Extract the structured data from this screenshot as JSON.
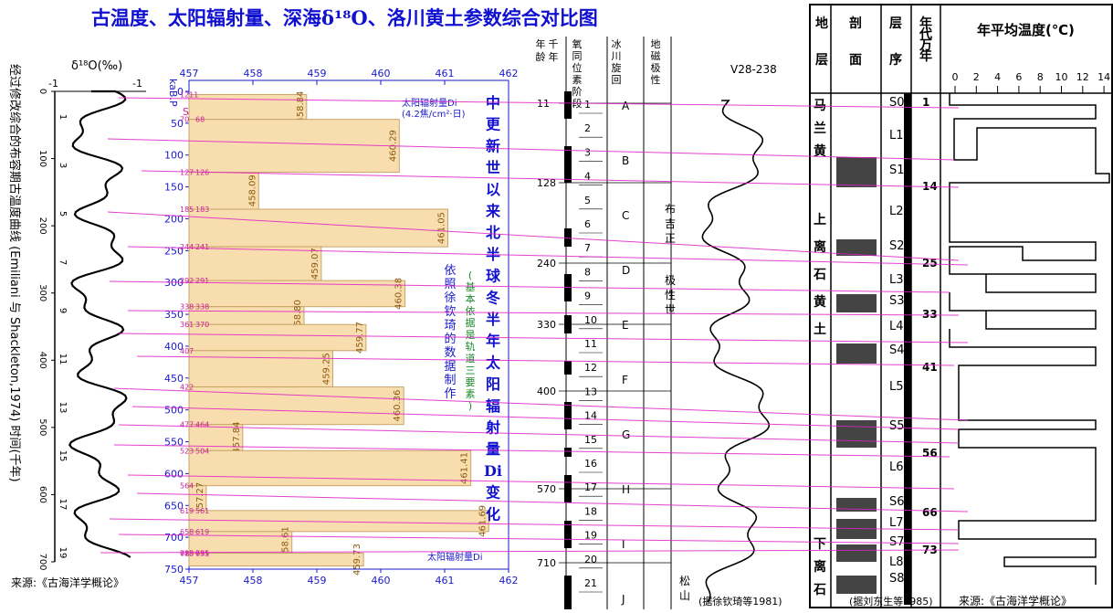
{
  "chart_data": {
    "type": "bar",
    "title": "古温度、太阳辐射量、深海δ¹⁸O、洛川黄土参数综合对比图",
    "subtitle": "中更新世以来北半球冬半年太阳辐射量Di变化",
    "xlabel": "",
    "ylabel": "kaB.P",
    "xlim": [
      457,
      462
    ],
    "x_ticks": [
      457,
      458,
      459,
      460,
      461,
      462
    ],
    "ylim": [
      0,
      750
    ],
    "y_ticks": [
      0,
      50,
      100,
      150,
      200,
      250,
      300,
      350,
      400,
      450,
      500,
      550,
      600,
      650,
      700,
      750
    ],
    "sd_label": "SD",
    "series_label": "太阳辐射量Di",
    "series_unit": "(4.2焦/cm²·日)",
    "bottom_series_label": "太阳辐射量Di",
    "note_1": "依照徐钦琦的数据制作",
    "note_2": "(基本依据是轨道三要素)",
    "bars": [
      {
        "start": 5,
        "end": 44,
        "value": 458.84,
        "label": "458.84"
      },
      {
        "start": 44,
        "end": 127,
        "value": 460.29,
        "label": "460.29"
      },
      {
        "start": 127,
        "end": 185,
        "value": 458.09,
        "label": "458.09"
      },
      {
        "start": 185,
        "end": 244,
        "value": 461.05,
        "label": "461.05"
      },
      {
        "start": 244,
        "end": 297,
        "value": 459.07,
        "label": "459.07"
      },
      {
        "start": 297,
        "end": 338,
        "value": 460.38,
        "label": "460.38"
      },
      {
        "start": 338,
        "end": 366,
        "value": 458.8,
        "label": "458.80"
      },
      {
        "start": 366,
        "end": 407,
        "value": 459.77,
        "label": "459.77"
      },
      {
        "start": 407,
        "end": 464,
        "value": 459.25,
        "label": "459.25"
      },
      {
        "start": 464,
        "end": 523,
        "value": 460.36,
        "label": "460.36"
      },
      {
        "start": 523,
        "end": 564,
        "value": 457.84,
        "label": "457.84"
      },
      {
        "start": 564,
        "end": 619,
        "value": 461.41,
        "label": "461.41"
      },
      {
        "start": 619,
        "end": 658,
        "value": 457.27,
        "label": "457.27"
      },
      {
        "start": 658,
        "end": 691,
        "value": 461.69,
        "label": "461.69"
      },
      {
        "start": 691,
        "end": 725,
        "value": 458.61,
        "label": "458.61"
      },
      {
        "start": 725,
        "end": 745,
        "value": 459.73,
        "label": "459.73"
      }
    ],
    "age_labels_left": [
      "1211",
      "70",
      "127",
      "185",
      "244",
      "292",
      "338",
      "361",
      "407",
      "422",
      "477",
      "523",
      "564",
      "619",
      "658",
      "688",
      "713",
      "725"
    ],
    "age_labels_right": [
      "",
      "68",
      "126",
      "183",
      "241",
      "291",
      "338",
      "370",
      "",
      "",
      "464",
      "504",
      "",
      "561",
      "619",
      "655",
      "691",
      "735"
    ],
    "d18o_panel": {
      "axis_label": "δ¹⁸O(‰)",
      "scale_left": "-1",
      "scale_right": "-1",
      "side_label": "经过修改综合的布容期古温度曲线 (Emiliani 与 Shackleton,1974)  时间(千年)",
      "stage_numbers": [
        "1",
        "3",
        "5",
        "7",
        "9",
        "11",
        "13",
        "15",
        "17",
        "19"
      ],
      "depth_ticks": [
        "0",
        "100",
        "200",
        "300",
        "400",
        "500",
        "600",
        "700"
      ]
    },
    "core_panel": {
      "headers": [
        "年龄(千年)",
        "氧同位素阶段",
        "冰川旋回",
        "地磁极性",
        "V28-238"
      ],
      "age_marks": [
        "11",
        "128",
        "240",
        "330",
        "400",
        "570",
        "710"
      ],
      "stages": [
        "1",
        "2",
        "3",
        "4",
        "5",
        "6",
        "7",
        "8",
        "9",
        "10",
        "11",
        "12",
        "13",
        "14",
        "15",
        "16",
        "17",
        "18",
        "19",
        "20",
        "21"
      ],
      "glacial_cycles": [
        "A",
        "B",
        "C",
        "D",
        "E",
        "F",
        "G",
        "H",
        "I",
        "J"
      ],
      "polarity_upper": "布吉正极性世",
      "polarity_lower": "松山",
      "source": "(据徐钦琦等1981)"
    },
    "loess_panel": {
      "headers": [
        "地层",
        "剖面",
        "层序",
        "年代万年",
        "年平均温度(℃)"
      ],
      "temp_ticks": [
        "0",
        "2",
        "4",
        "6",
        "8",
        "10",
        "12",
        "14"
      ],
      "strata": [
        "马兰黄土",
        "上离石黄土",
        "下离石"
      ],
      "layers": [
        "S0",
        "L1",
        "S1",
        "L2",
        "S2",
        "L3",
        "S3",
        "L4",
        "S4",
        "L5",
        "S5",
        "L6",
        "S6",
        "L7",
        "S7",
        "L8",
        "S8"
      ],
      "ages": [
        "1",
        "14",
        "25",
        "33",
        "41",
        "56",
        "66",
        "73"
      ],
      "source": "(据刘东生等1985)"
    },
    "sources": [
      "来源:《古海洋学概论》",
      "来源:《古海洋学概论》"
    ],
    "colors": {
      "bar_fill": "#f8deae",
      "bar_stroke": "#c9a46a",
      "connect_line": "#e020c8",
      "axis_blue": "#1a1acc",
      "title": "#1010d0",
      "value_label": "#8a5a10",
      "age_label": "#c81f9a"
    }
  }
}
